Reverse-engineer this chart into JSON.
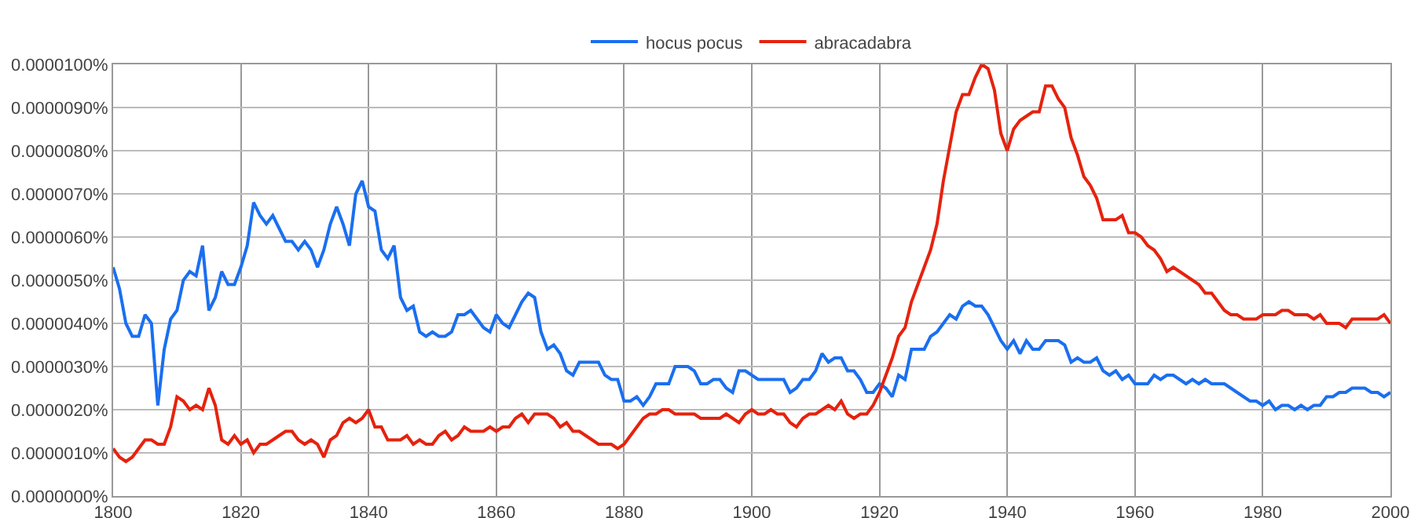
{
  "chart_data": {
    "type": "line",
    "x": [
      1800,
      1801,
      1802,
      1803,
      1804,
      1805,
      1806,
      1807,
      1808,
      1809,
      1810,
      1811,
      1812,
      1813,
      1814,
      1815,
      1816,
      1817,
      1818,
      1819,
      1820,
      1821,
      1822,
      1823,
      1824,
      1825,
      1826,
      1827,
      1828,
      1829,
      1830,
      1831,
      1832,
      1833,
      1834,
      1835,
      1836,
      1837,
      1838,
      1839,
      1840,
      1841,
      1842,
      1843,
      1844,
      1845,
      1846,
      1847,
      1848,
      1849,
      1850,
      1851,
      1852,
      1853,
      1854,
      1855,
      1856,
      1857,
      1858,
      1859,
      1860,
      1861,
      1862,
      1863,
      1864,
      1865,
      1866,
      1867,
      1868,
      1869,
      1870,
      1871,
      1872,
      1873,
      1874,
      1875,
      1876,
      1877,
      1878,
      1879,
      1880,
      1881,
      1882,
      1883,
      1884,
      1885,
      1886,
      1887,
      1888,
      1889,
      1890,
      1891,
      1892,
      1893,
      1894,
      1895,
      1896,
      1897,
      1898,
      1899,
      1900,
      1901,
      1902,
      1903,
      1904,
      1905,
      1906,
      1907,
      1908,
      1909,
      1910,
      1911,
      1912,
      1913,
      1914,
      1915,
      1916,
      1917,
      1918,
      1919,
      1920,
      1921,
      1922,
      1923,
      1924,
      1925,
      1926,
      1927,
      1928,
      1929,
      1930,
      1931,
      1932,
      1933,
      1934,
      1935,
      1936,
      1937,
      1938,
      1939,
      1940,
      1941,
      1942,
      1943,
      1944,
      1945,
      1946,
      1947,
      1948,
      1949,
      1950,
      1951,
      1952,
      1953,
      1954,
      1955,
      1956,
      1957,
      1958,
      1959,
      1960,
      1961,
      1962,
      1963,
      1964,
      1965,
      1966,
      1967,
      1968,
      1969,
      1970,
      1971,
      1972,
      1973,
      1974,
      1975,
      1976,
      1977,
      1978,
      1979,
      1980,
      1981,
      1982,
      1983,
      1984,
      1985,
      1986,
      1987,
      1988,
      1989,
      1990,
      1991,
      1992,
      1993,
      1994,
      1995,
      1996,
      1997,
      1998,
      1999,
      2000
    ],
    "series": [
      {
        "name": "hocus pocus",
        "color": "#1a6ff0",
        "values": [
          5.3e-06,
          4.8e-06,
          4e-06,
          3.7e-06,
          3.7e-06,
          4.2e-06,
          4e-06,
          2.1e-06,
          3.4e-06,
          4.1e-06,
          4.3e-06,
          5e-06,
          5.2e-06,
          5.1e-06,
          5.8e-06,
          4.3e-06,
          4.6e-06,
          5.2e-06,
          4.9e-06,
          4.9e-06,
          5.3e-06,
          5.8e-06,
          6.8e-06,
          6.5e-06,
          6.3e-06,
          6.5e-06,
          6.2e-06,
          5.9e-06,
          5.9e-06,
          5.7e-06,
          5.9e-06,
          5.7e-06,
          5.3e-06,
          5.7e-06,
          6.3e-06,
          6.7e-06,
          6.3e-06,
          5.8e-06,
          7e-06,
          7.3e-06,
          6.7e-06,
          6.6e-06,
          5.7e-06,
          5.5e-06,
          5.8e-06,
          4.6e-06,
          4.3e-06,
          4.4e-06,
          3.8e-06,
          3.7e-06,
          3.8e-06,
          3.7e-06,
          3.7e-06,
          3.8e-06,
          4.2e-06,
          4.2e-06,
          4.3e-06,
          4.1e-06,
          3.9e-06,
          3.8e-06,
          4.2e-06,
          4e-06,
          3.9e-06,
          4.2e-06,
          4.5e-06,
          4.7e-06,
          4.6e-06,
          3.8e-06,
          3.4e-06,
          3.5e-06,
          3.3e-06,
          2.9e-06,
          2.8e-06,
          3.1e-06,
          3.1e-06,
          3.1e-06,
          3.1e-06,
          2.8e-06,
          2.7e-06,
          2.7e-06,
          2.2e-06,
          2.2e-06,
          2.3e-06,
          2.1e-06,
          2.3e-06,
          2.6e-06,
          2.6e-06,
          2.6e-06,
          3e-06,
          3e-06,
          3e-06,
          2.9e-06,
          2.6e-06,
          2.6e-06,
          2.7e-06,
          2.7e-06,
          2.5e-06,
          2.4e-06,
          2.9e-06,
          2.9e-06,
          2.8e-06,
          2.7e-06,
          2.7e-06,
          2.7e-06,
          2.7e-06,
          2.7e-06,
          2.4e-06,
          2.5e-06,
          2.7e-06,
          2.7e-06,
          2.9e-06,
          3.3e-06,
          3.1e-06,
          3.2e-06,
          3.2e-06,
          2.9e-06,
          2.9e-06,
          2.7e-06,
          2.4e-06,
          2.4e-06,
          2.6e-06,
          2.5e-06,
          2.3e-06,
          2.8e-06,
          2.7e-06,
          3.4e-06,
          3.4e-06,
          3.4e-06,
          3.7e-06,
          3.8e-06,
          4e-06,
          4.2e-06,
          4.1e-06,
          4.4e-06,
          4.5e-06,
          4.4e-06,
          4.4e-06,
          4.2e-06,
          3.9e-06,
          3.6e-06,
          3.4e-06,
          3.6e-06,
          3.3e-06,
          3.6e-06,
          3.4e-06,
          3.4e-06,
          3.6e-06,
          3.6e-06,
          3.6e-06,
          3.5e-06,
          3.1e-06,
          3.2e-06,
          3.1e-06,
          3.1e-06,
          3.2e-06,
          2.9e-06,
          2.8e-06,
          2.9e-06,
          2.7e-06,
          2.8e-06,
          2.6e-06,
          2.6e-06,
          2.6e-06,
          2.8e-06,
          2.7e-06,
          2.8e-06,
          2.8e-06,
          2.7e-06,
          2.6e-06,
          2.7e-06,
          2.6e-06,
          2.7e-06,
          2.6e-06,
          2.6e-06,
          2.6e-06,
          2.5e-06,
          2.4e-06,
          2.3e-06,
          2.2e-06,
          2.2e-06,
          2.1e-06,
          2.2e-06,
          2e-06,
          2.1e-06,
          2.1e-06,
          2e-06,
          2.1e-06,
          2e-06,
          2.1e-06,
          2.1e-06,
          2.3e-06,
          2.3e-06,
          2.4e-06,
          2.4e-06,
          2.5e-06,
          2.5e-06,
          2.5e-06,
          2.4e-06,
          2.4e-06,
          2.3e-06,
          2.4e-06
        ]
      },
      {
        "name": "abracadabra",
        "color": "#e6220d",
        "values": [
          1.1e-06,
          9e-07,
          8e-07,
          9e-07,
          1.1e-06,
          1.3e-06,
          1.3e-06,
          1.2e-06,
          1.2e-06,
          1.6e-06,
          2.3e-06,
          2.2e-06,
          2e-06,
          2.1e-06,
          2e-06,
          2.5e-06,
          2.1e-06,
          1.3e-06,
          1.2e-06,
          1.4e-06,
          1.2e-06,
          1.3e-06,
          1e-06,
          1.2e-06,
          1.2e-06,
          1.3e-06,
          1.4e-06,
          1.5e-06,
          1.5e-06,
          1.3e-06,
          1.2e-06,
          1.3e-06,
          1.2e-06,
          9e-07,
          1.3e-06,
          1.4e-06,
          1.7e-06,
          1.8e-06,
          1.7e-06,
          1.8e-06,
          2e-06,
          1.6e-06,
          1.6e-06,
          1.3e-06,
          1.3e-06,
          1.3e-06,
          1.4e-06,
          1.2e-06,
          1.3e-06,
          1.2e-06,
          1.2e-06,
          1.4e-06,
          1.5e-06,
          1.3e-06,
          1.4e-06,
          1.6e-06,
          1.5e-06,
          1.5e-06,
          1.5e-06,
          1.6e-06,
          1.5e-06,
          1.6e-06,
          1.6e-06,
          1.8e-06,
          1.9e-06,
          1.7e-06,
          1.9e-06,
          1.9e-06,
          1.9e-06,
          1.8e-06,
          1.6e-06,
          1.7e-06,
          1.5e-06,
          1.5e-06,
          1.4e-06,
          1.3e-06,
          1.2e-06,
          1.2e-06,
          1.2e-06,
          1.1e-06,
          1.2e-06,
          1.4e-06,
          1.6e-06,
          1.8e-06,
          1.9e-06,
          1.9e-06,
          2e-06,
          2e-06,
          1.9e-06,
          1.9e-06,
          1.9e-06,
          1.9e-06,
          1.8e-06,
          1.8e-06,
          1.8e-06,
          1.8e-06,
          1.9e-06,
          1.8e-06,
          1.7e-06,
          1.9e-06,
          2e-06,
          1.9e-06,
          1.9e-06,
          2e-06,
          1.9e-06,
          1.9e-06,
          1.7e-06,
          1.6e-06,
          1.8e-06,
          1.9e-06,
          1.9e-06,
          2e-06,
          2.1e-06,
          2e-06,
          2.2e-06,
          1.9e-06,
          1.8e-06,
          1.9e-06,
          1.9e-06,
          2.1e-06,
          2.4e-06,
          2.8e-06,
          3.2e-06,
          3.7e-06,
          3.9e-06,
          4.5e-06,
          4.9e-06,
          5.3e-06,
          5.7e-06,
          6.3e-06,
          7.3e-06,
          8.1e-06,
          8.9e-06,
          9.3e-06,
          9.3e-06,
          9.7e-06,
          1e-05,
          9.9e-06,
          9.4e-06,
          8.4e-06,
          8e-06,
          8.5e-06,
          8.7e-06,
          8.8e-06,
          8.9e-06,
          8.9e-06,
          9.5e-06,
          9.5e-06,
          9.2e-06,
          9e-06,
          8.3e-06,
          7.9e-06,
          7.4e-06,
          7.2e-06,
          6.9e-06,
          6.4e-06,
          6.4e-06,
          6.4e-06,
          6.5e-06,
          6.1e-06,
          6.1e-06,
          6e-06,
          5.8e-06,
          5.7e-06,
          5.5e-06,
          5.2e-06,
          5.3e-06,
          5.2e-06,
          5.1e-06,
          5e-06,
          4.9e-06,
          4.7e-06,
          4.7e-06,
          4.5e-06,
          4.3e-06,
          4.2e-06,
          4.2e-06,
          4.1e-06,
          4.1e-06,
          4.1e-06,
          4.2e-06,
          4.2e-06,
          4.2e-06,
          4.3e-06,
          4.3e-06,
          4.2e-06,
          4.2e-06,
          4.2e-06,
          4.1e-06,
          4.2e-06,
          4e-06,
          4e-06,
          4e-06,
          3.9e-06,
          4.1e-06,
          4.1e-06,
          4.1e-06,
          4.1e-06,
          4.1e-06,
          4.2e-06,
          4e-06
        ]
      }
    ],
    "xlim": [
      1800,
      2000
    ],
    "xticks": [
      1800,
      1820,
      1840,
      1860,
      1880,
      1900,
      1920,
      1940,
      1960,
      1980,
      2000
    ],
    "ylim": [
      0,
      1e-05
    ],
    "yticks": [
      {
        "value": 0,
        "label": "0.0000000%"
      },
      {
        "value": 1e-06,
        "label": "0.0000010%"
      },
      {
        "value": 2e-06,
        "label": "0.0000020%"
      },
      {
        "value": 3e-06,
        "label": "0.0000030%"
      },
      {
        "value": 4e-06,
        "label": "0.0000040%"
      },
      {
        "value": 5e-06,
        "label": "0.0000050%"
      },
      {
        "value": 6e-06,
        "label": "0.0000060%"
      },
      {
        "value": 7e-06,
        "label": "0.0000070%"
      },
      {
        "value": 8e-06,
        "label": "0.0000080%"
      },
      {
        "value": 9e-06,
        "label": "0.0000090%"
      },
      {
        "value": 1e-05,
        "label": "0.0000100%"
      }
    ],
    "grid": true,
    "legend": "top",
    "marker": "none",
    "line_style": "solid"
  }
}
